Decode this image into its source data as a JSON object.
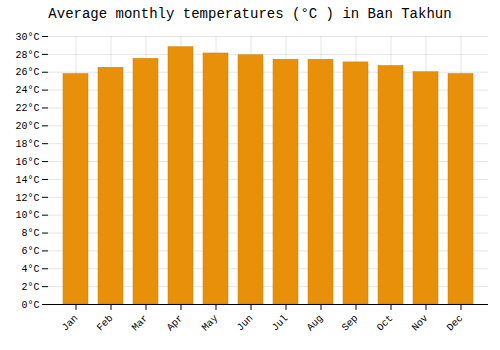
{
  "chart_data": {
    "type": "bar",
    "title": "Average monthly temperatures (°C ) in Ban Takhun",
    "categories": [
      "Jan",
      "Feb",
      "Mar",
      "Apr",
      "May",
      "Jun",
      "Jul",
      "Aug",
      "Sep",
      "Oct",
      "Nov",
      "Dec"
    ],
    "values": [
      25.8,
      26.5,
      27.5,
      28.8,
      28.1,
      27.9,
      27.4,
      27.4,
      27.1,
      26.7,
      26.0,
      25.8
    ],
    "color": "#E8900A",
    "ylim": [
      0,
      30
    ],
    "yticks": [
      {
        "value": 0,
        "label": "0°C"
      },
      {
        "value": 2,
        "label": "2°C"
      },
      {
        "value": 4,
        "label": "4°C"
      },
      {
        "value": 6,
        "label": "6°C"
      },
      {
        "value": 8,
        "label": "8°C"
      },
      {
        "value": 10,
        "label": "10°C"
      },
      {
        "value": 12,
        "label": "12°C"
      },
      {
        "value": 14,
        "label": "14°C"
      },
      {
        "value": 16,
        "label": "16°C"
      },
      {
        "value": 18,
        "label": "18°C"
      },
      {
        "value": 20,
        "label": "20°C"
      },
      {
        "value": 22,
        "label": "22°C"
      },
      {
        "value": 24,
        "label": "24°C"
      },
      {
        "value": 26,
        "label": "26°C"
      },
      {
        "value": 28,
        "label": "28°C"
      },
      {
        "value": 30,
        "label": "30°C"
      }
    ],
    "grid": true
  }
}
